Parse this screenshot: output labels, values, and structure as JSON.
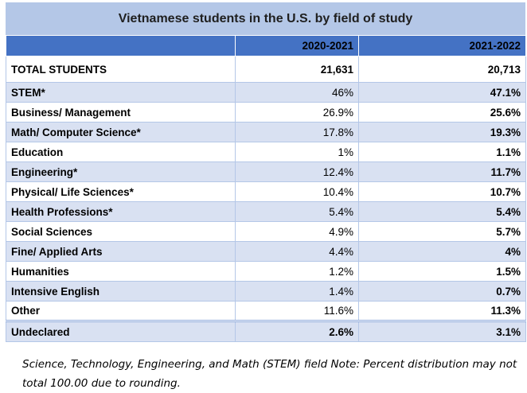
{
  "title": "Vietnamese students in the U.S. by field of study",
  "columns": [
    "",
    "2020-2021",
    "2021-2022"
  ],
  "total": {
    "label": "TOTAL STUDENTS",
    "y2020_2021": "21,631",
    "y2021_2022": "20,713"
  },
  "rows": [
    {
      "label": "STEM*",
      "y2020_2021": "46%",
      "y2021_2022": "47.1%"
    },
    {
      "label": "Business/ Management",
      "y2020_2021": "26.9%",
      "y2021_2022": "25.6%"
    },
    {
      "label": "Math/ Computer Science*",
      "y2020_2021": "17.8%",
      "y2021_2022": "19.3%"
    },
    {
      "label": "Education",
      "y2020_2021": "1%",
      "y2021_2022": "1.1%"
    },
    {
      "label": "Engineering*",
      "y2020_2021": "12.4%",
      "y2021_2022": "11.7%"
    },
    {
      "label": "Physical/ Life Sciences*",
      "y2020_2021": "10.4%",
      "y2021_2022": "10.7%"
    },
    {
      "label": "Health Professions*",
      "y2020_2021": "5.4%",
      "y2021_2022": "5.4%"
    },
    {
      "label": "Social Sciences",
      "y2020_2021": "4.9%",
      "y2021_2022": "5.7%"
    },
    {
      "label": "Fine/ Applied Arts",
      "y2020_2021": "4.4%",
      "y2021_2022": "4%"
    },
    {
      "label": "Humanities",
      "y2020_2021": "1.2%",
      "y2021_2022": "1.5%"
    },
    {
      "label": "Intensive English",
      "y2020_2021": "1.4%",
      "y2021_2022": "0.7%"
    },
    {
      "label": "Other",
      "y2020_2021": "11.6%",
      "y2021_2022": "11.3%"
    },
    {
      "label": "Undeclared",
      "y2020_2021": "2.6%",
      "y2021_2022": "3.1%"
    }
  ],
  "note": "Science, Technology, Engineering, and Math (STEM) field Note: Percent distribution may not total 100.00 due to rounding.",
  "colors": {
    "title_background": "#b4c7e7",
    "header_background": "#4472c4",
    "shaded_row": "#d9e1f2",
    "border": "#b4c7e7"
  }
}
